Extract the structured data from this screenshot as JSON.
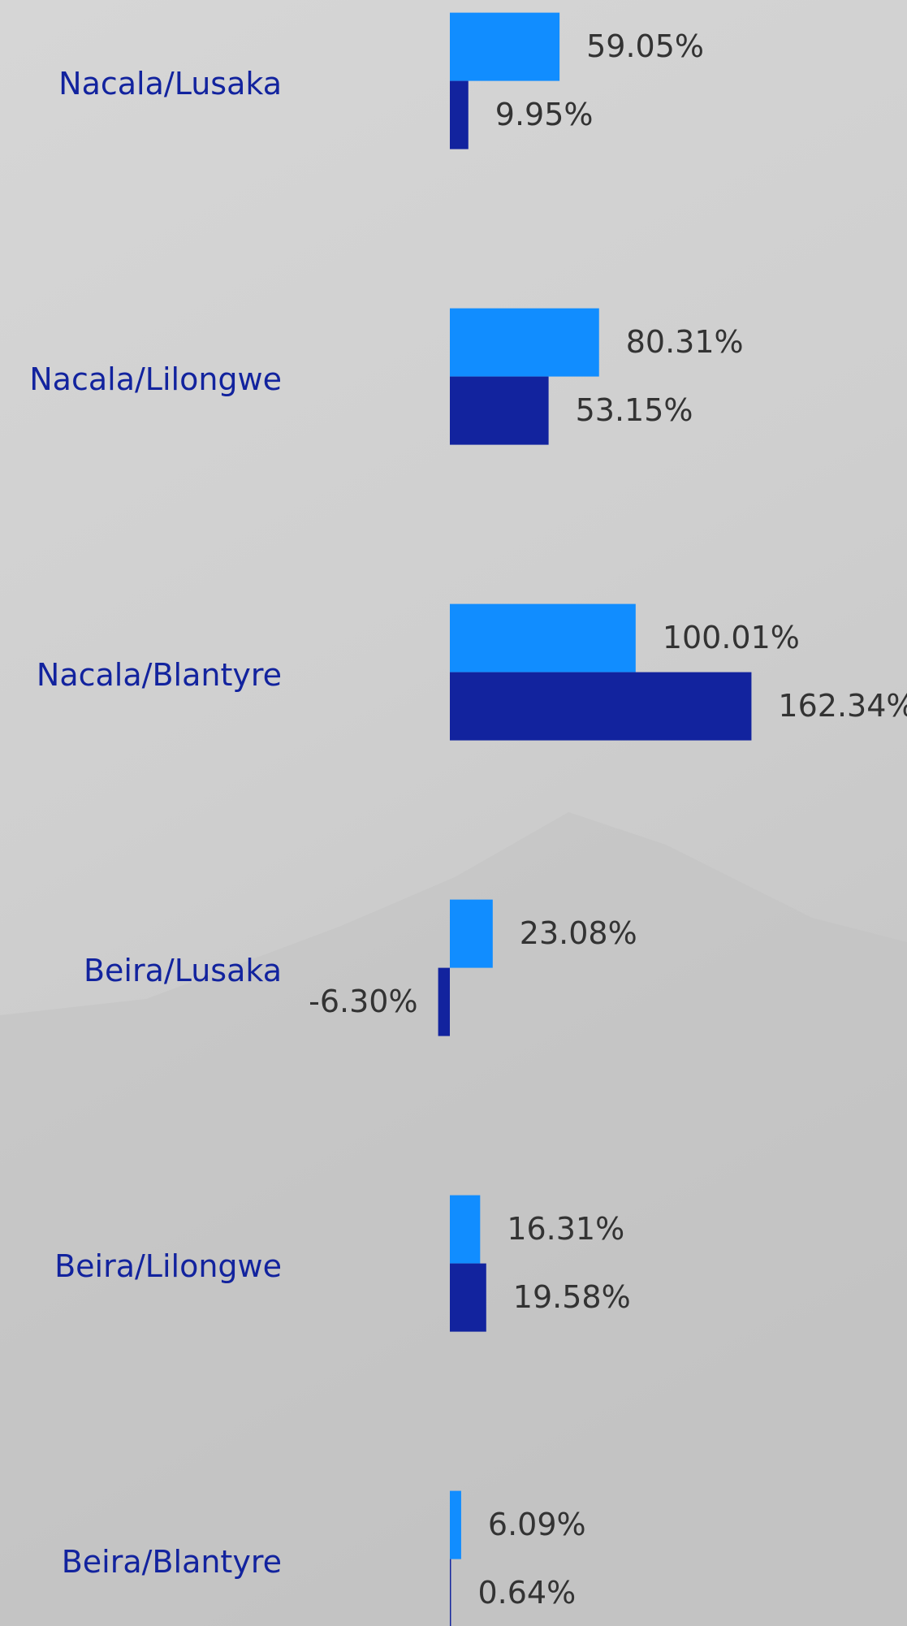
{
  "chart_data": {
    "type": "bar",
    "orientation": "horizontal",
    "categories": [
      "Nacala/Lusaka",
      "Nacala/Lilongwe",
      "Nacala/Blantyre",
      "Beira/Lusaka",
      "Beira/Lilongwe",
      "Beira/Blantyre"
    ],
    "series": [
      {
        "color": "#118dff",
        "values": [
          59.05,
          80.31,
          100.01,
          23.08,
          16.31,
          6.09
        ],
        "value_labels": [
          "59.05%",
          "80.31%",
          "100.01%",
          "23.08%",
          "16.31%",
          "6.09%"
        ]
      },
      {
        "color": "#12239e",
        "values": [
          9.95,
          53.15,
          162.34,
          -6.3,
          19.58,
          0.64
        ],
        "value_labels": [
          "9.95%",
          "53.15%",
          "162.34%",
          "-6.30%",
          "19.58%",
          "0.64%"
        ]
      }
    ]
  }
}
